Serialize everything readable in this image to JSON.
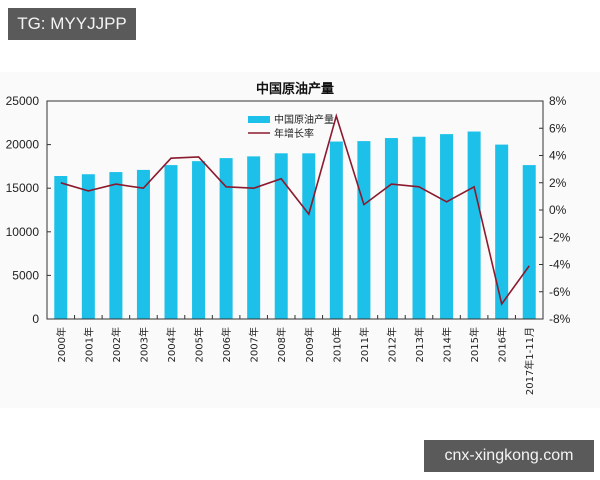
{
  "badges": {
    "top_left": "TG: MYYJJPP",
    "bottom_right": "cnx-xingkong.com"
  },
  "colors": {
    "bar": "#1cc0e8",
    "line": "#8b1a2e",
    "axis": "#333333"
  },
  "chart_data": {
    "type": "bar",
    "title": "中国原油产量",
    "xlabel": "",
    "ylabel": "",
    "y2label": "",
    "categories": [
      "2000年",
      "2001年",
      "2002年",
      "2003年",
      "2004年",
      "2005年",
      "2006年",
      "2007年",
      "2008年",
      "2009年",
      "2010年",
      "2011年",
      "2012年",
      "2013年",
      "2014年",
      "2015年",
      "2016年",
      "2017年1-11月"
    ],
    "series": [
      {
        "name": "中国原油产量",
        "type": "bar",
        "axis": "left",
        "values": [
          16400,
          16600,
          16850,
          17100,
          17650,
          18100,
          18450,
          18650,
          19000,
          19000,
          20350,
          20400,
          20750,
          20900,
          21200,
          21500,
          20000,
          17650
        ]
      },
      {
        "name": "年增长率",
        "type": "line",
        "axis": "right",
        "unit": "%",
        "values": [
          2.0,
          1.4,
          1.9,
          1.6,
          3.8,
          3.9,
          1.7,
          1.6,
          2.3,
          -0.3,
          6.9,
          0.4,
          1.9,
          1.7,
          0.6,
          1.7,
          -6.9,
          -4.1
        ]
      }
    ],
    "ylim": [
      0,
      25000
    ],
    "y2lim": [
      -8,
      8
    ],
    "yticks": [
      "0",
      "5000",
      "10000",
      "15000",
      "20000",
      "25000"
    ],
    "y2ticks": [
      "-8%",
      "-6%",
      "-4%",
      "-2%",
      "0%",
      "2%",
      "4%",
      "6%",
      "8%"
    ],
    "legend": {
      "position": "upper-center-left",
      "entries": [
        "中国原油产量",
        "年增长率"
      ]
    },
    "grid": false
  }
}
